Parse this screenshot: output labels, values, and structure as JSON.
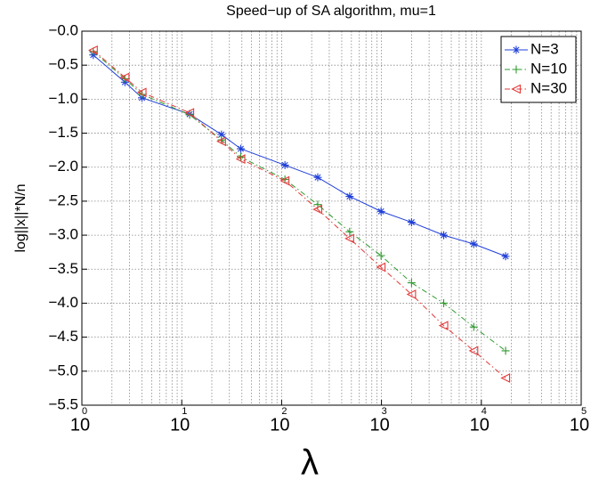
{
  "chart_data": {
    "type": "line",
    "title": "Speed−up of SA algorithm, mu=1",
    "x_label": "λ",
    "y_label": "log||x||*N/n",
    "x": [
      1.3,
      2.7,
      4,
      12,
      25,
      39,
      108,
      230,
      480,
      990,
      2000,
      4200,
      8400,
      17500
    ],
    "series": [
      {
        "name": "N=3",
        "color": "#1f3fd8",
        "marker": "star",
        "dash": "none",
        "values": [
          -0.35,
          -0.75,
          -0.98,
          -1.22,
          -1.52,
          -1.73,
          -1.97,
          -2.15,
          -2.43,
          -2.65,
          -2.81,
          -3.0,
          -3.13,
          -3.31
        ]
      },
      {
        "name": "N=10",
        "color": "#2e9a2e",
        "marker": "plus",
        "dash": "6 3 1.5 3",
        "values": [
          -0.3,
          -0.7,
          -0.93,
          -1.23,
          -1.6,
          -1.85,
          -2.18,
          -2.55,
          -2.95,
          -3.3,
          -3.7,
          -4.0,
          -4.35,
          -4.7
        ]
      },
      {
        "name": "N=30",
        "color": "#e23a3a",
        "marker": "triangle-left",
        "dash": "6 3 1.5 3",
        "values": [
          -0.28,
          -0.68,
          -0.9,
          -1.2,
          -1.62,
          -1.88,
          -2.2,
          -2.62,
          -3.05,
          -3.47,
          -3.87,
          -4.33,
          -4.7,
          -5.1
        ]
      }
    ],
    "x_scale": "log",
    "xlim": [
      1,
      100000
    ],
    "xticks": [
      {
        "value": 1,
        "label": "10",
        "exponent": "0"
      },
      {
        "value": 10,
        "label": "10",
        "exponent": "1"
      },
      {
        "value": 100,
        "label": "10",
        "exponent": "2"
      },
      {
        "value": 1000,
        "label": "10",
        "exponent": "3"
      },
      {
        "value": 10000,
        "label": "10",
        "exponent": "4"
      },
      {
        "value": 100000,
        "label": "10",
        "exponent": "5"
      }
    ],
    "ylim": [
      -5.5,
      0
    ],
    "yticks": [
      {
        "value": 0,
        "label": "−0.0"
      },
      {
        "value": -0.5,
        "label": "−0.5"
      },
      {
        "value": -1,
        "label": "−1.0"
      },
      {
        "value": -1.5,
        "label": "−1.5"
      },
      {
        "value": -2,
        "label": "−2.0"
      },
      {
        "value": -2.5,
        "label": "−2.5"
      },
      {
        "value": -3,
        "label": "−3.0"
      },
      {
        "value": -3.5,
        "label": "−3.5"
      },
      {
        "value": -4,
        "label": "−4.0"
      },
      {
        "value": -4.5,
        "label": "−4.5"
      },
      {
        "value": -5,
        "label": "−5.0"
      },
      {
        "value": -5.5,
        "label": "−5.5"
      }
    ],
    "grid": true,
    "legend": "upper-right"
  }
}
